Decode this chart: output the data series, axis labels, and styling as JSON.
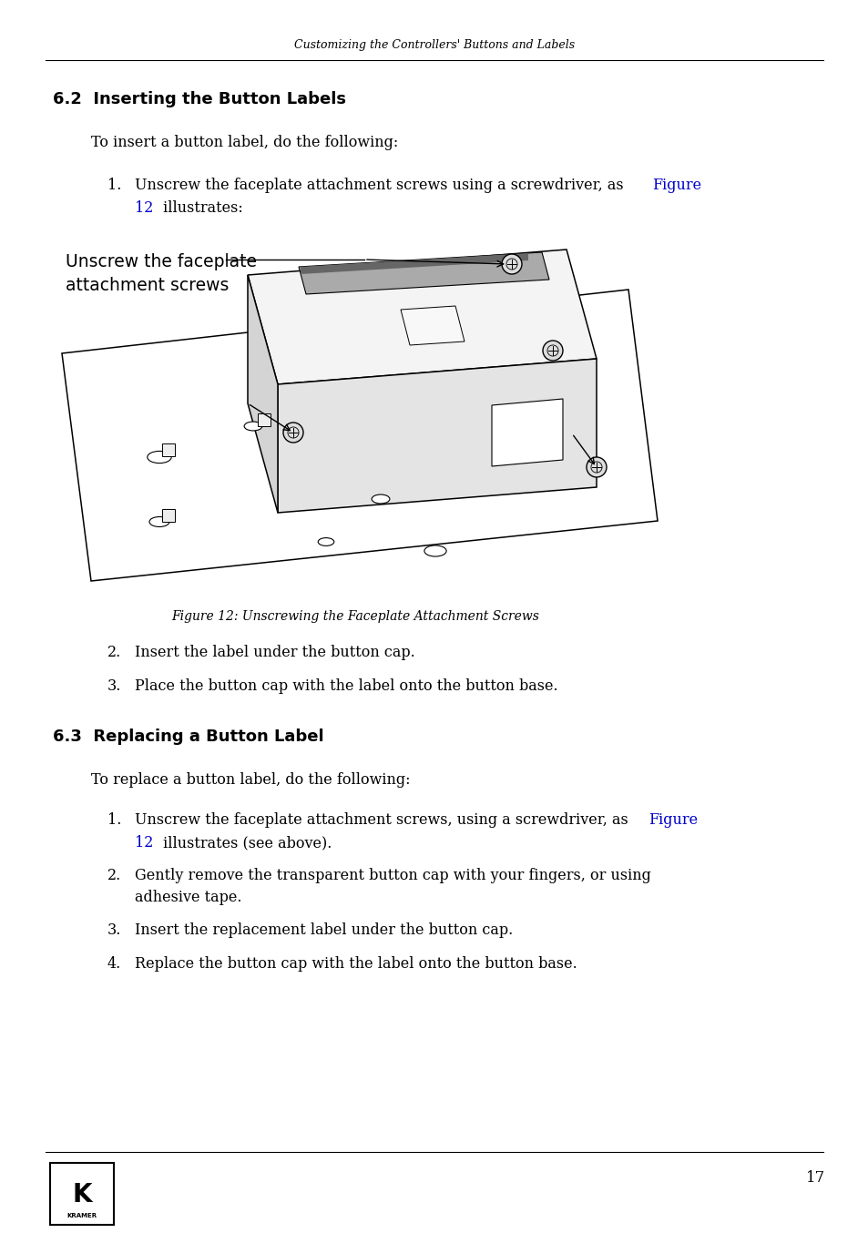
{
  "page_width": 9.54,
  "page_height": 13.54,
  "bg_color": "#ffffff",
  "header_text": "Customizing the Controllers' Buttons and Labels",
  "text_color": "#000000",
  "link_color": "#0000cc",
  "section1_title": "6.2  Inserting the Button Labels",
  "section1_intro": "To insert a button label, do the following:",
  "figure_caption": "Figure 12: Unscrewing the Faceplate Attachment Screws",
  "ann_line1": "Unscrew the faceplate",
  "ann_line2": "attachment screws",
  "section2_title": "6.3  Replacing a Button Label",
  "section2_intro": "To replace a button label, do the following:",
  "page_number": "17"
}
